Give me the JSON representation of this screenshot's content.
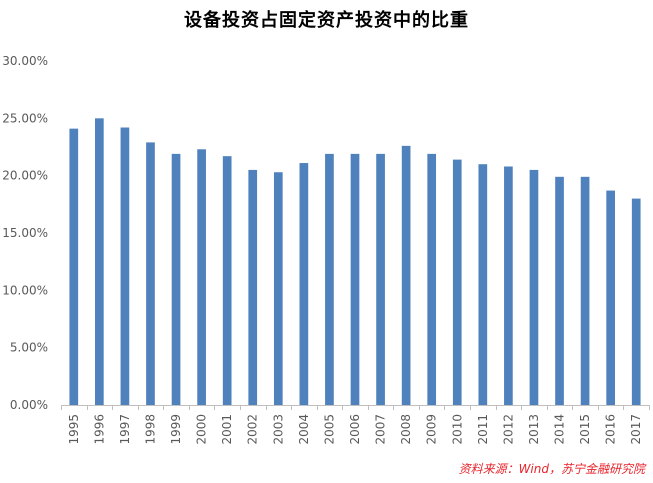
{
  "chart_data": {
    "type": "bar",
    "title": "设备投资占固定资产投资中的比重",
    "xlabel": "",
    "ylabel": "",
    "categories": [
      "1995",
      "1996",
      "1997",
      "1998",
      "1999",
      "2000",
      "2001",
      "2002",
      "2003",
      "2004",
      "2005",
      "2006",
      "2007",
      "2008",
      "2009",
      "2010",
      "2011",
      "2012",
      "2013",
      "2014",
      "2015",
      "2016",
      "2017"
    ],
    "values": [
      24.1,
      25.0,
      24.2,
      22.9,
      21.9,
      22.3,
      21.7,
      20.5,
      20.3,
      21.1,
      21.9,
      21.9,
      21.9,
      22.6,
      21.9,
      21.4,
      21.0,
      20.8,
      20.5,
      19.9,
      19.9,
      18.7,
      18.0
    ],
    "yticks": [
      "0.00%",
      "5.00%",
      "10.00%",
      "15.00%",
      "20.00%",
      "25.00%",
      "30.00%"
    ],
    "ylim": [
      0,
      30
    ],
    "grid": false,
    "bar_color": "#4f81bd",
    "source": "资料来源：Wind，苏宁金融研究院",
    "source_color": "#e8242c"
  }
}
